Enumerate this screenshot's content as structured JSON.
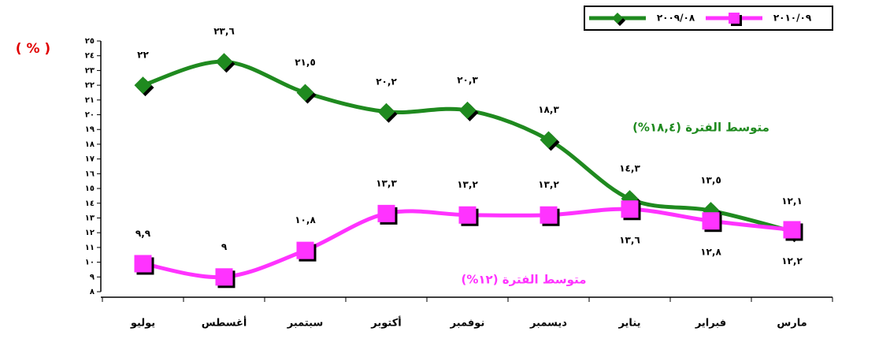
{
  "chart_data": {
    "type": "line",
    "y_label": "( % )",
    "categories": [
      "يوليو",
      "أغسطس",
      "سبتمبر",
      "أكتوبر",
      "نوفمبر",
      "ديسمبر",
      "يناير",
      "فبراير",
      "مارس"
    ],
    "series": [
      {
        "name": "٢٠٠٩/٠٨",
        "color": "#1f8a1f",
        "marker": "diamond",
        "values": [
          22,
          23.6,
          21.5,
          20.2,
          20.3,
          18.3,
          14.3,
          13.5,
          12.1
        ],
        "value_labels": [
          "٢٢",
          "٢٣,٦",
          "٢١,٥",
          "٢٠,٢",
          "٢٠,٣",
          "١٨,٣",
          "١٤,٣",
          "١٣,٥",
          "١٢,١"
        ]
      },
      {
        "name": "٢٠١٠/٠٩",
        "color": "#ff33ff",
        "marker": "square",
        "values": [
          9.9,
          9,
          10.8,
          13.3,
          13.2,
          13.2,
          13.6,
          12.8,
          12.2
        ],
        "value_labels": [
          "٩,٩",
          "٩",
          "١٠,٨",
          "١٣,٣",
          "١٣,٢",
          "١٣,٢",
          "١٣,٦",
          "١٢,٨",
          "١٢,٢"
        ]
      }
    ],
    "annotations": [
      "متوسط الفترة (١٨,٤%)",
      "متوسط الفترة (١٢%)"
    ],
    "ylim": [
      8,
      25
    ],
    "yticks": [
      {
        "value": 8,
        "label": "٨"
      },
      {
        "value": 9,
        "label": "٩"
      },
      {
        "value": 10,
        "label": "١٠"
      },
      {
        "value": 11,
        "label": "١١"
      },
      {
        "value": 12,
        "label": "١٢"
      },
      {
        "value": 13,
        "label": "١٣"
      },
      {
        "value": 14,
        "label": "١٤"
      },
      {
        "value": 15,
        "label": "١٥"
      },
      {
        "value": 16,
        "label": "١٦"
      },
      {
        "value": 17,
        "label": "١٧"
      },
      {
        "value": 18,
        "label": "١٨"
      },
      {
        "value": 19,
        "label": "١٩"
      },
      {
        "value": 20,
        "label": "٢٠"
      },
      {
        "value": 21,
        "label": "٢١"
      },
      {
        "value": 22,
        "label": "٢٢"
      },
      {
        "value": 23,
        "label": "٢٣"
      },
      {
        "value": 24,
        "label": "٢٤"
      },
      {
        "value": 25,
        "label": "٢٥"
      }
    ],
    "legend": "top-right"
  }
}
